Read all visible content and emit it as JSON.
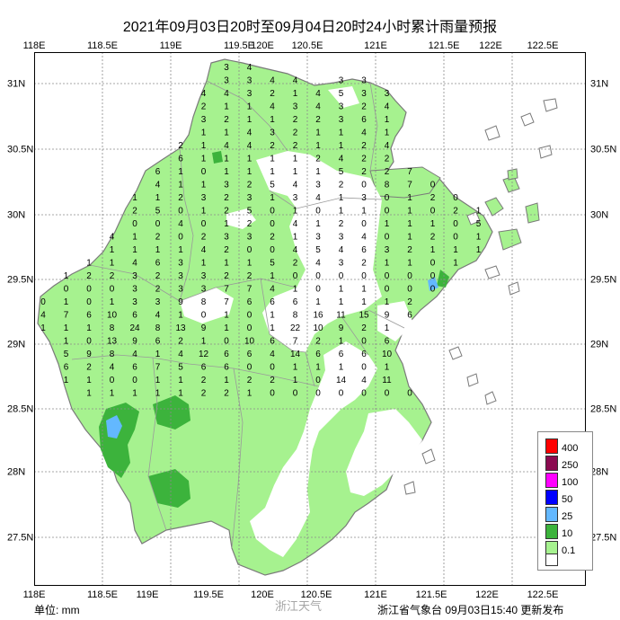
{
  "title": "2021年09月03日20时至09月04日20时24小时累计雨量预报",
  "lon_labels": [
    "118E",
    "118.5E",
    "119E",
    "119.5E",
    "120E",
    "120.5E",
    "121E",
    "121.5E",
    "122E",
    "122.5E"
  ],
  "lon_labels_bottom": [
    "118E",
    "118.5E",
    "119E",
    "119.5E",
    "120E",
    "120.5E",
    "121E",
    "121.5E",
    "122E",
    "122.5E"
  ],
  "lat_labels": [
    "31N",
    "30.5N",
    "30N",
    "29.5N",
    "29N",
    "28.5N",
    "28N",
    "27.5N"
  ],
  "legend": {
    "items": [
      {
        "label": "400",
        "color": "#ff0000"
      },
      {
        "label": "250",
        "color": "#8b0a50"
      },
      {
        "label": "100",
        "color": "#ff00ff"
      },
      {
        "label": "50",
        "color": "#0000ff"
      },
      {
        "label": "25",
        "color": "#63b8ff"
      },
      {
        "label": "10",
        "color": "#3cb33c"
      },
      {
        "label": "0.1",
        "color": "#a6f28f"
      },
      {
        "label": "",
        "color": "#ffffff"
      }
    ]
  },
  "colors": {
    "light_green": "#a6f28f",
    "mid_green": "#3cb33c",
    "light_blue": "#63b8ff",
    "grid": "#8a8a8a",
    "coast": "#7a7a7a"
  },
  "footer": {
    "unit": "单位: mm",
    "issuer": "浙江省气象台 09月03日15:40 更新发布"
  },
  "watermark": "浙江天气",
  "station_values": [
    "3",
    "4",
    "3",
    "3",
    "4",
    "4",
    "3",
    "3",
    "4",
    "4",
    "3",
    "2",
    "1",
    "4",
    "5",
    "3",
    "3",
    "2",
    "1",
    "1",
    "4",
    "3",
    "4",
    "3",
    "2",
    "4",
    "3",
    "2",
    "1",
    "1",
    "2",
    "2",
    "3",
    "6",
    "1",
    "1",
    "1",
    "4",
    "3",
    "2",
    "1",
    "1",
    "4",
    "1",
    "2",
    "1",
    "4",
    "4",
    "2",
    "2",
    "1",
    "1",
    "2",
    "4",
    "6",
    "1",
    "1",
    "1",
    "1",
    "1",
    "2",
    "4",
    "2",
    "2",
    "6",
    "1",
    "0",
    "1",
    "1",
    "1",
    "1",
    "1",
    "5",
    "2",
    "2",
    "7",
    "4",
    "1",
    "1",
    "3",
    "2",
    "5",
    "4",
    "3",
    "2",
    "0",
    "8",
    "7",
    "0",
    "1",
    "1",
    "2",
    "3",
    "2",
    "3",
    "1",
    "3",
    "4",
    "1",
    "3",
    "0",
    "1",
    "2",
    "0",
    "2",
    "5",
    "0",
    "1",
    "2",
    "5",
    "0",
    "1",
    "0",
    "1",
    "1",
    "0",
    "1",
    "0",
    "2",
    "1",
    "0",
    "0",
    "4",
    "0",
    "1",
    "2",
    "0",
    "4",
    "1",
    "2",
    "0",
    "1",
    "1",
    "1",
    "0",
    "5",
    "4",
    "1",
    "2",
    "0",
    "2",
    "3",
    "3",
    "2",
    "1",
    "3",
    "3",
    "4",
    "0",
    "1",
    "2",
    "0",
    "1",
    "1",
    "1",
    "1",
    "1",
    "4",
    "2",
    "0",
    "0",
    "4",
    "5",
    "4",
    "6",
    "3",
    "2",
    "1",
    "1",
    "1",
    "1",
    "1",
    "4",
    "6",
    "3",
    "1",
    "1",
    "1",
    "5",
    "2",
    "4",
    "3",
    "2",
    "1",
    "1",
    "0",
    "1",
    "1",
    "2",
    "2",
    "3",
    "2",
    "3",
    "3",
    "2",
    "2",
    "1",
    "0",
    "0",
    "0",
    "0",
    "0",
    "0",
    "0",
    "0",
    "0",
    "0",
    "3",
    "2",
    "3",
    "3",
    "7",
    "7",
    "4",
    "1",
    "0",
    "1",
    "1",
    "0",
    "0",
    "0",
    "0",
    "1",
    "0",
    "1",
    "3",
    "3",
    "9",
    "8",
    "7",
    "6",
    "6",
    "6",
    "1",
    "1",
    "1",
    "1",
    "2",
    "4",
    "7",
    "6",
    "10",
    "6",
    "4",
    "1",
    "0",
    "1",
    "0",
    "1",
    "8",
    "16",
    "11",
    "15",
    "9",
    "6",
    "1",
    "1",
    "1",
    "8",
    "24",
    "8",
    "13",
    "9",
    "1",
    "0",
    "1",
    "22",
    "10",
    "9",
    "2",
    "1",
    "1",
    "0",
    "13",
    "9",
    "6",
    "2",
    "1",
    "0",
    "10",
    "6",
    "7",
    "2",
    "1",
    "0",
    "6",
    "5",
    "9",
    "8",
    "4",
    "1",
    "4",
    "12",
    "6",
    "6",
    "4",
    "14",
    "6",
    "6",
    "6",
    "10",
    "6",
    "2",
    "4",
    "6",
    "7",
    "5",
    "6",
    "6",
    "0",
    "0",
    "1",
    "1",
    "1",
    "0",
    "1",
    "1",
    "1",
    "0",
    "0",
    "1",
    "1",
    "2",
    "1",
    "2",
    "2",
    "1",
    "0",
    "14",
    "4",
    "11",
    "1",
    "1",
    "1",
    "1",
    "1",
    "2",
    "2",
    "1",
    "0",
    "0",
    "0",
    "0",
    "0",
    "0",
    "0"
  ]
}
